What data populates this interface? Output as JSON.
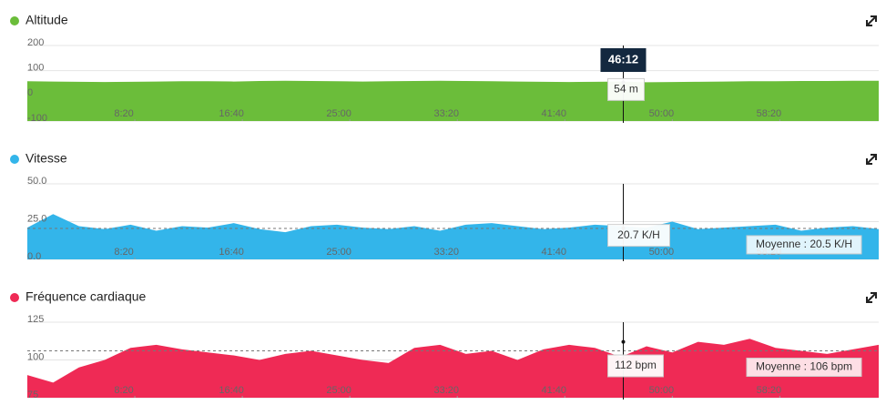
{
  "crosshair": {
    "value": 2772,
    "label": "46:12"
  },
  "chart_data": [
    {
      "type": "area",
      "title": "Altitude",
      "color": "#6bbd3a",
      "x": [
        0,
        120,
        240,
        360,
        480,
        600,
        720,
        840,
        960,
        1080,
        1200,
        1320,
        1440,
        1560,
        1680,
        1800,
        1920,
        2040,
        2160,
        2280,
        2400,
        2520,
        2640,
        2760,
        2880,
        3000,
        3120,
        3240,
        3360,
        3480,
        3600,
        3720,
        3840,
        3960
      ],
      "values": [
        58,
        57,
        56,
        55,
        56,
        57,
        58,
        58,
        57,
        59,
        60,
        59,
        58,
        57,
        58,
        59,
        60,
        59,
        58,
        57,
        56,
        55,
        56,
        57,
        54,
        55,
        56,
        57,
        58,
        58,
        59,
        59,
        60,
        60
      ],
      "xlim": [
        0,
        3960
      ],
      "xticks": [
        {
          "value": 500,
          "label": "8:20"
        },
        {
          "value": 1000,
          "label": "16:40"
        },
        {
          "value": 1500,
          "label": "25:00"
        },
        {
          "value": 2000,
          "label": "33:20"
        },
        {
          "value": 2500,
          "label": "41:40"
        },
        {
          "value": 3000,
          "label": "50:00"
        },
        {
          "value": 3500,
          "label": "58:20"
        }
      ],
      "ylim": [
        -100,
        200
      ],
      "yticks": [
        200,
        100,
        0,
        -100
      ],
      "tooltip": {
        "value": 54,
        "label": "54 m"
      }
    },
    {
      "type": "area",
      "title": "Vitesse",
      "color": "#33b5ea",
      "x": [
        0,
        120,
        240,
        360,
        480,
        600,
        720,
        840,
        960,
        1080,
        1200,
        1320,
        1440,
        1560,
        1680,
        1800,
        1920,
        2040,
        2160,
        2280,
        2400,
        2520,
        2640,
        2760,
        2880,
        3000,
        3120,
        3240,
        3360,
        3480,
        3600,
        3720,
        3840,
        3960
      ],
      "values": [
        21,
        30,
        22,
        20,
        23,
        19,
        22,
        21,
        24,
        20,
        18,
        22,
        23,
        21,
        20,
        22,
        19,
        23,
        24,
        22,
        20,
        21,
        23,
        22,
        21,
        25,
        20,
        21,
        22,
        23,
        19,
        21,
        22,
        20
      ],
      "xlim": [
        0,
        3960
      ],
      "xticks": [
        {
          "value": 500,
          "label": "8:20"
        },
        {
          "value": 1000,
          "label": "16:40"
        },
        {
          "value": 1500,
          "label": "25:00"
        },
        {
          "value": 2000,
          "label": "33:20"
        },
        {
          "value": 2500,
          "label": "41:40"
        },
        {
          "value": 3000,
          "label": "50:00"
        },
        {
          "value": 3500,
          "label": "58:20"
        }
      ],
      "ylim": [
        0,
        50
      ],
      "yticks": [
        {
          "value": 50,
          "label": "50.0"
        },
        {
          "value": 25,
          "label": "25.0"
        },
        {
          "value": 0,
          "label": "0.0"
        }
      ],
      "tooltip": {
        "value": 20.7,
        "label": "20.7 K/H"
      },
      "average": {
        "value": 20.5,
        "label": "Moyenne : 20.5 K/H"
      }
    },
    {
      "type": "area",
      "title": "Fréquence cardiaque",
      "color": "#ef2a55",
      "x": [
        0,
        120,
        240,
        360,
        480,
        600,
        720,
        840,
        960,
        1080,
        1200,
        1320,
        1440,
        1560,
        1680,
        1800,
        1920,
        2040,
        2160,
        2280,
        2400,
        2520,
        2640,
        2760,
        2880,
        3000,
        3120,
        3240,
        3360,
        3480,
        3600,
        3720,
        3840,
        3960
      ],
      "values": [
        90,
        85,
        95,
        100,
        108,
        110,
        107,
        105,
        103,
        100,
        104,
        106,
        103,
        100,
        98,
        108,
        110,
        104,
        106,
        100,
        107,
        110,
        108,
        102,
        109,
        105,
        112,
        110,
        114,
        108,
        106,
        104,
        107,
        110
      ],
      "xlim": [
        0,
        3960
      ],
      "xticks": [
        {
          "value": 500,
          "label": "8:20"
        },
        {
          "value": 1000,
          "label": "16:40"
        },
        {
          "value": 1500,
          "label": "25:00"
        },
        {
          "value": 2000,
          "label": "33:20"
        },
        {
          "value": 2500,
          "label": "41:40"
        },
        {
          "value": 3000,
          "label": "50:00"
        },
        {
          "value": 3500,
          "label": "58:20"
        }
      ],
      "ylim": [
        75,
        125
      ],
      "yticks": [
        125,
        100,
        75
      ],
      "tooltip": {
        "value": 112,
        "label": "112 bpm"
      },
      "average": {
        "value": 106,
        "label": "Moyenne : 106 bpm"
      }
    }
  ]
}
